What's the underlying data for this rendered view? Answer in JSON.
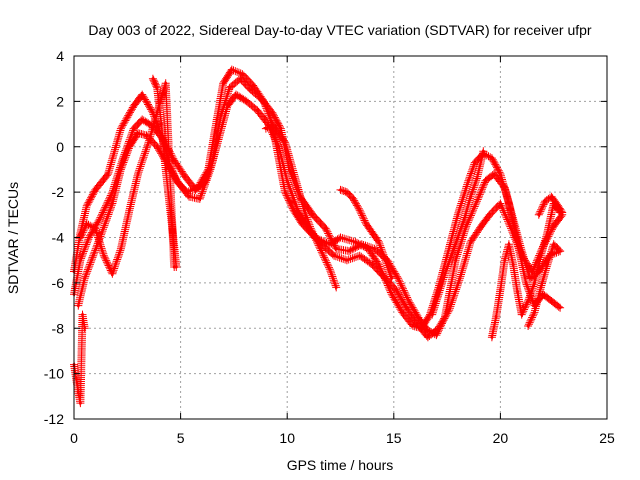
{
  "chart_data": {
    "type": "scatter",
    "title": "Day 003 of 2022, Sidereal Day-to-day VTEC variation (SDTVAR) for receiver ufpr",
    "xlabel": "GPS time / hours",
    "ylabel": "SDTVAR / TECUs",
    "xlim": [
      0,
      25
    ],
    "ylim": [
      -12,
      4
    ],
    "xticks": [
      0,
      5,
      10,
      15,
      20,
      25
    ],
    "yticks": [
      -12,
      -10,
      -8,
      -6,
      -4,
      -2,
      0,
      2,
      4
    ],
    "grid": true,
    "legend": "none",
    "marker": "+",
    "color": "#ff0000",
    "series": [
      {
        "x": [
          0.0,
          0.3,
          0.6,
          1.0,
          1.6,
          2.2,
          2.8,
          3.2,
          3.7,
          4.1,
          4.5,
          4.8,
          5.3,
          5.8,
          6.3,
          6.7,
          7.0,
          7.4,
          7.9,
          8.4,
          8.9,
          9.3,
          9.6,
          9.9,
          10.3,
          10.7,
          11.3,
          12.0,
          12.5,
          13.2,
          13.8,
          14.3,
          14.9,
          15.4,
          15.9,
          16.3,
          16.7,
          17.1,
          17.5,
          18.0,
          18.5,
          18.8,
          19.2,
          19.6,
          20.0,
          20.4,
          20.7,
          21.2,
          21.6,
          22.0,
          22.4,
          22.8
        ],
        "y": [
          -5.5,
          -3.8,
          -2.6,
          -1.9,
          -1.2,
          0.8,
          1.8,
          2.3,
          1.5,
          0.5,
          -0.8,
          -1.5,
          -2.0,
          -1.8,
          -1.0,
          1.2,
          2.8,
          3.4,
          3.2,
          2.7,
          2.0,
          1.0,
          -0.5,
          -2.0,
          -2.8,
          -3.4,
          -4.0,
          -4.3,
          -4.0,
          -4.2,
          -4.5,
          -5.2,
          -6.5,
          -7.3,
          -7.9,
          -8.0,
          -7.4,
          -6.2,
          -4.8,
          -3.0,
          -1.5,
          -0.7,
          -0.3,
          -0.5,
          -1.2,
          -2.5,
          -3.8,
          -6.0,
          -7.0,
          -6.5,
          -6.8,
          -7.1
        ]
      },
      {
        "x": [
          0.0,
          0.3,
          0.7,
          1.2,
          1.8,
          2.3,
          2.8,
          3.2,
          3.7,
          4.2,
          4.7,
          5.2,
          5.7,
          6.1,
          6.5,
          6.9,
          7.3,
          7.8,
          8.3,
          8.8,
          9.3,
          9.7,
          10.1,
          10.6,
          11.2,
          11.8,
          12.3,
          12.9,
          13.5,
          14.1,
          14.7,
          15.2,
          15.7,
          16.2,
          16.6,
          17.0,
          17.4,
          17.9,
          18.4,
          18.9,
          19.3,
          19.7,
          20.2,
          20.6,
          21.0,
          21.4,
          21.8,
          22.3,
          22.8
        ],
        "y": [
          -6.5,
          -5.0,
          -4.0,
          -3.2,
          -2.0,
          -0.5,
          0.8,
          1.2,
          0.9,
          0.3,
          -0.6,
          -1.3,
          -1.9,
          -1.6,
          -0.6,
          1.4,
          2.6,
          3.0,
          2.5,
          2.1,
          1.5,
          0.8,
          -1.0,
          -2.2,
          -3.0,
          -3.6,
          -4.5,
          -4.6,
          -4.3,
          -4.5,
          -5.0,
          -5.8,
          -6.8,
          -7.6,
          -8.1,
          -8.3,
          -7.5,
          -5.0,
          -3.5,
          -2.4,
          -1.5,
          -1.2,
          -1.8,
          -3.2,
          -4.6,
          -5.8,
          -5.5,
          -4.8,
          -4.6
        ]
      },
      {
        "x": [
          0.2,
          0.5,
          0.9,
          1.3,
          1.8,
          2.2,
          2.6,
          3.0,
          3.4,
          3.9,
          4.4,
          4.9,
          5.4,
          5.9,
          6.4,
          6.8,
          7.2,
          7.6,
          8.1,
          8.6,
          9.1,
          9.6,
          10.0,
          10.5,
          11.0,
          11.6,
          12.2,
          12.8,
          13.4,
          14.0,
          14.6,
          15.1,
          15.6,
          16.1,
          16.6,
          17.1,
          17.6,
          18.1,
          18.6,
          19.1,
          19.5,
          20.0,
          20.5,
          21.0,
          21.5,
          22.0,
          22.5,
          22.9
        ],
        "y": [
          -7.0,
          -5.8,
          -4.8,
          -3.8,
          -2.5,
          -1.0,
          0.0,
          0.6,
          0.5,
          0.0,
          -0.8,
          -1.6,
          -2.2,
          -2.3,
          -1.0,
          0.4,
          1.8,
          2.3,
          2.0,
          1.6,
          1.0,
          0.0,
          -1.5,
          -2.8,
          -3.6,
          -4.3,
          -4.8,
          -5.0,
          -4.8,
          -5.2,
          -5.8,
          -6.3,
          -7.1,
          -7.8,
          -8.4,
          -8.0,
          -7.2,
          -5.8,
          -4.2,
          -3.5,
          -3.0,
          -2.5,
          -3.6,
          -4.8,
          -5.5,
          -4.4,
          -3.5,
          -3.0
        ]
      },
      {
        "x": [
          0.3,
          0.6,
          1.0,
          1.4,
          1.8,
          2.2,
          2.6,
          3.0,
          3.5,
          3.9,
          4.3,
          4.7
        ],
        "y": [
          -4.0,
          -3.4,
          -3.6,
          -4.8,
          -5.6,
          -4.5,
          -2.8,
          -1.2,
          0.2,
          1.5,
          2.8,
          -5.3
        ]
      },
      {
        "x": [
          0.0,
          0.1,
          0.2,
          0.3,
          0.4,
          0.5
        ],
        "y": [
          -9.6,
          -10.2,
          -10.8,
          -11.3,
          -7.4,
          -8.0
        ]
      },
      {
        "x": [
          3.7,
          3.9,
          4.1,
          4.3,
          4.6,
          4.8
        ],
        "y": [
          3.0,
          2.6,
          1.0,
          -1.0,
          -3.5,
          -5.3
        ]
      },
      {
        "x": [
          9.0,
          9.3,
          9.6,
          9.9,
          10.2,
          10.5,
          10.8,
          11.1,
          11.4,
          11.7,
          12.0,
          12.3
        ],
        "y": [
          0.8,
          1.0,
          0.6,
          0.2,
          -0.8,
          -1.8,
          -2.8,
          -3.6,
          -4.2,
          -4.8,
          -5.4,
          -6.2
        ]
      },
      {
        "x": [
          12.5,
          12.8,
          13.1,
          13.4,
          13.7,
          14.0,
          14.3,
          14.6,
          14.9
        ],
        "y": [
          -1.9,
          -2.0,
          -2.3,
          -2.8,
          -3.4,
          -3.8,
          -4.2,
          -5.0,
          -5.8
        ]
      },
      {
        "x": [
          16.8,
          17.1,
          17.4,
          17.7,
          18.0,
          18.3,
          18.6,
          18.9,
          19.2
        ],
        "y": [
          -7.4,
          -6.5,
          -5.6,
          -4.8,
          -4.0,
          -3.2,
          -2.2,
          -1.4,
          -0.2
        ]
      },
      {
        "x": [
          19.6,
          19.8,
          20.0,
          20.2,
          20.4,
          20.6,
          20.8,
          21.0,
          21.3,
          21.6,
          21.9,
          22.2,
          22.5,
          22.8
        ],
        "y": [
          -8.4,
          -7.5,
          -6.3,
          -5.0,
          -4.3,
          -5.2,
          -6.4,
          -7.4,
          -6.8,
          -6.0,
          -4.8,
          -3.8,
          -2.5,
          -2.9
        ]
      },
      {
        "x": [
          21.3,
          21.6,
          21.9,
          22.2,
          22.5,
          22.8
        ],
        "y": [
          -7.9,
          -7.3,
          -6.2,
          -5.2,
          -4.3,
          -4.6
        ]
      },
      {
        "x": [
          21.8,
          22.1,
          22.4,
          22.7,
          22.9
        ],
        "y": [
          -3.0,
          -2.4,
          -2.2,
          -2.6,
          -2.9
        ]
      }
    ]
  }
}
